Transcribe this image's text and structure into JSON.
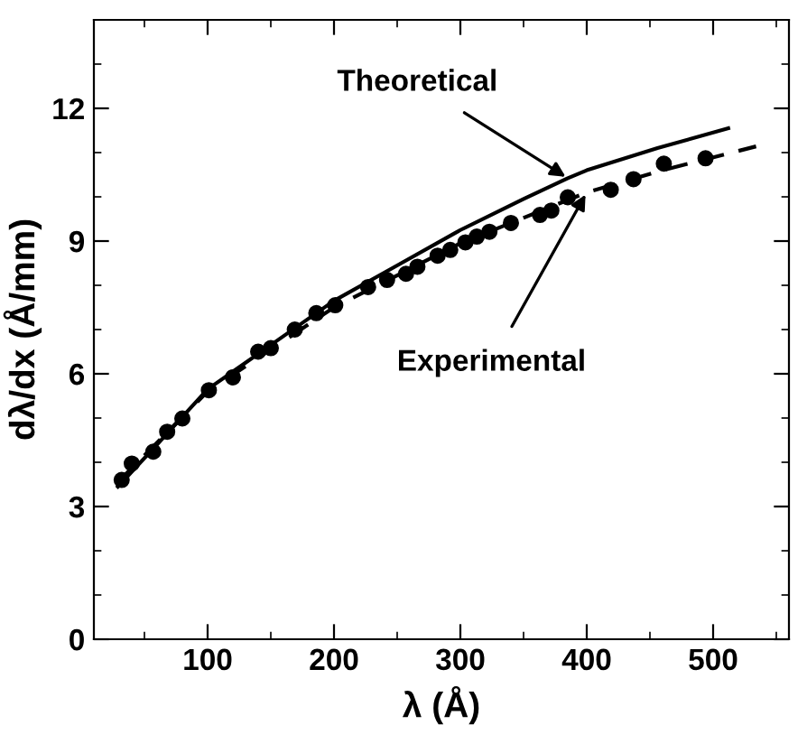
{
  "chart_data": {
    "type": "line",
    "xlabel": "λ (Å)",
    "ylabel": "dλ/dx (Å/mm)",
    "xlim": [
      10,
      560
    ],
    "ylim": [
      0,
      14
    ],
    "xticks": [
      {
        "value": 50,
        "label": null
      },
      100,
      {
        "value": 150,
        "label": null
      },
      200,
      {
        "value": 250,
        "label": null
      },
      300,
      {
        "value": 350,
        "label": null
      },
      400,
      {
        "value": 450,
        "label": null
      },
      500,
      {
        "value": 550,
        "label": null
      }
    ],
    "yticks": [
      0,
      {
        "value": 1,
        "label": null
      },
      {
        "value": 2,
        "label": null
      },
      3,
      {
        "value": 4,
        "label": null
      },
      {
        "value": 5,
        "label": null
      },
      6,
      {
        "value": 7,
        "label": null
      },
      {
        "value": 8,
        "label": null
      },
      9,
      {
        "value": 10,
        "label": null
      },
      {
        "value": 11,
        "label": null
      },
      12,
      {
        "value": 13,
        "label": null
      }
    ],
    "grid": false,
    "series": [
      {
        "color": "#000000",
        "line_style": "solid",
        "marker": "none",
        "x": [
          29,
          60,
          100,
          150,
          200,
          250,
          300,
          350,
          385,
          400,
          456,
          512
        ],
        "values": [
          3.45,
          4.4,
          5.65,
          6.65,
          7.65,
          8.45,
          9.25,
          9.95,
          10.42,
          10.6,
          11.1,
          11.55
        ]
      },
      {
        "color": "#000000",
        "line_style": "dashed",
        "marker": "none",
        "x": [
          29,
          100,
          200,
          300,
          400,
          460,
          534
        ],
        "values": [
          3.55,
          5.6,
          7.5,
          8.95,
          10.1,
          10.6,
          11.14
        ]
      },
      {
        "type": "scatter",
        "color": "#000000",
        "marker": "circle",
        "x": [
          32,
          40,
          57,
          68,
          80,
          101,
          120,
          140,
          150,
          169,
          186,
          201,
          227,
          242,
          257,
          266,
          282,
          292,
          304,
          313,
          323,
          340,
          363,
          372,
          385,
          419,
          437,
          461,
          494
        ],
        "values": [
          3.6,
          3.97,
          4.24,
          4.69,
          4.99,
          5.63,
          5.92,
          6.5,
          6.58,
          7.0,
          7.37,
          7.55,
          7.96,
          8.12,
          8.26,
          8.42,
          8.67,
          8.8,
          8.97,
          9.1,
          9.21,
          9.41,
          9.59,
          9.69,
          9.99,
          10.16,
          10.4,
          10.75,
          10.87
        ]
      }
    ],
    "annotations": [
      {
        "text": "Theoretical",
        "x": 385,
        "y": 10.42
      },
      {
        "text": "Experimental",
        "x": 400,
        "y": 10.1
      }
    ]
  }
}
